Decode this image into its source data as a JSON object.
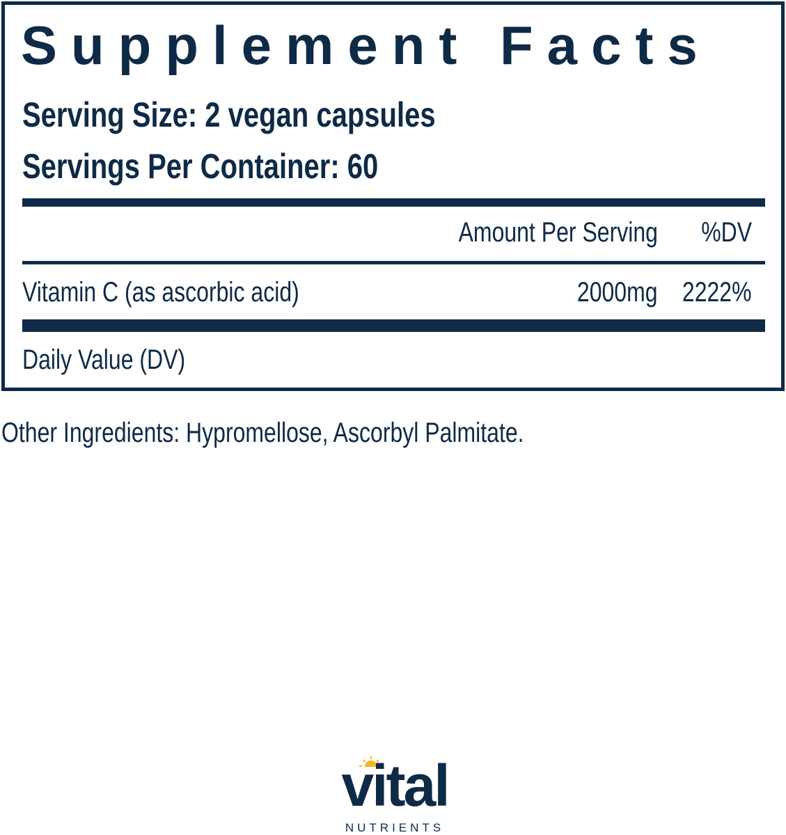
{
  "title": "Supplement Facts",
  "serving_size": "Serving Size: 2 vegan capsules",
  "servings_per_container": "Servings Per Container: 60",
  "columns": {
    "amount": "Amount Per Serving",
    "dv": "%DV"
  },
  "rows": [
    {
      "name": "Vitamin C (as ascorbic acid)",
      "amount": "2000mg",
      "dv": "2222%"
    }
  ],
  "footnote": "Daily Value (DV)",
  "other_ingredients": "Other Ingredients: Hypromellose, Ascorbyl Palmitate.",
  "brand": {
    "name": "vital",
    "sub": "NUTRIENTS",
    "color": "#0e2a47",
    "sun_color": "#f2b51f"
  }
}
